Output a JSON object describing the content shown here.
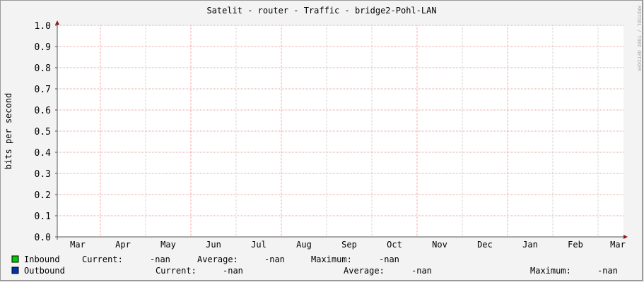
{
  "chart_data": {
    "type": "line",
    "title": "Satelit - router - Traffic - bridge2-Pohl-LAN",
    "ylabel": "bits per second",
    "xlabel": "",
    "watermark": "RRDTOOL / TOBI OETIKER",
    "ylim": [
      0,
      1.0
    ],
    "y_ticks": [
      "0.0",
      "0.1",
      "0.2",
      "0.3",
      "0.4",
      "0.5",
      "0.6",
      "0.7",
      "0.8",
      "0.9",
      "1.0"
    ],
    "x_ticks": [
      "Mar",
      "Apr",
      "May",
      "Jun",
      "Jul",
      "Aug",
      "Sep",
      "Oct",
      "Nov",
      "Dec",
      "Jan",
      "Feb",
      "Mar"
    ],
    "grid": true,
    "series": [
      {
        "name": "Inbound",
        "color": "#00cc00",
        "values": []
      },
      {
        "name": "Outbound",
        "color": "#0033aa",
        "values": []
      }
    ]
  },
  "legend": [
    {
      "name": "Inbound",
      "color": "#00cc00",
      "current_label": "Current:",
      "current": "-nan",
      "average_label": "Average:",
      "average": "-nan",
      "maximum_label": "Maximum:",
      "maximum": "-nan"
    },
    {
      "name": "Outbound",
      "color": "#0033aa",
      "current_label": "Current:",
      "current": "-nan",
      "average_label": "Average:",
      "average": "-nan",
      "maximum_label": "Maximum:",
      "maximum": "-nan"
    }
  ]
}
